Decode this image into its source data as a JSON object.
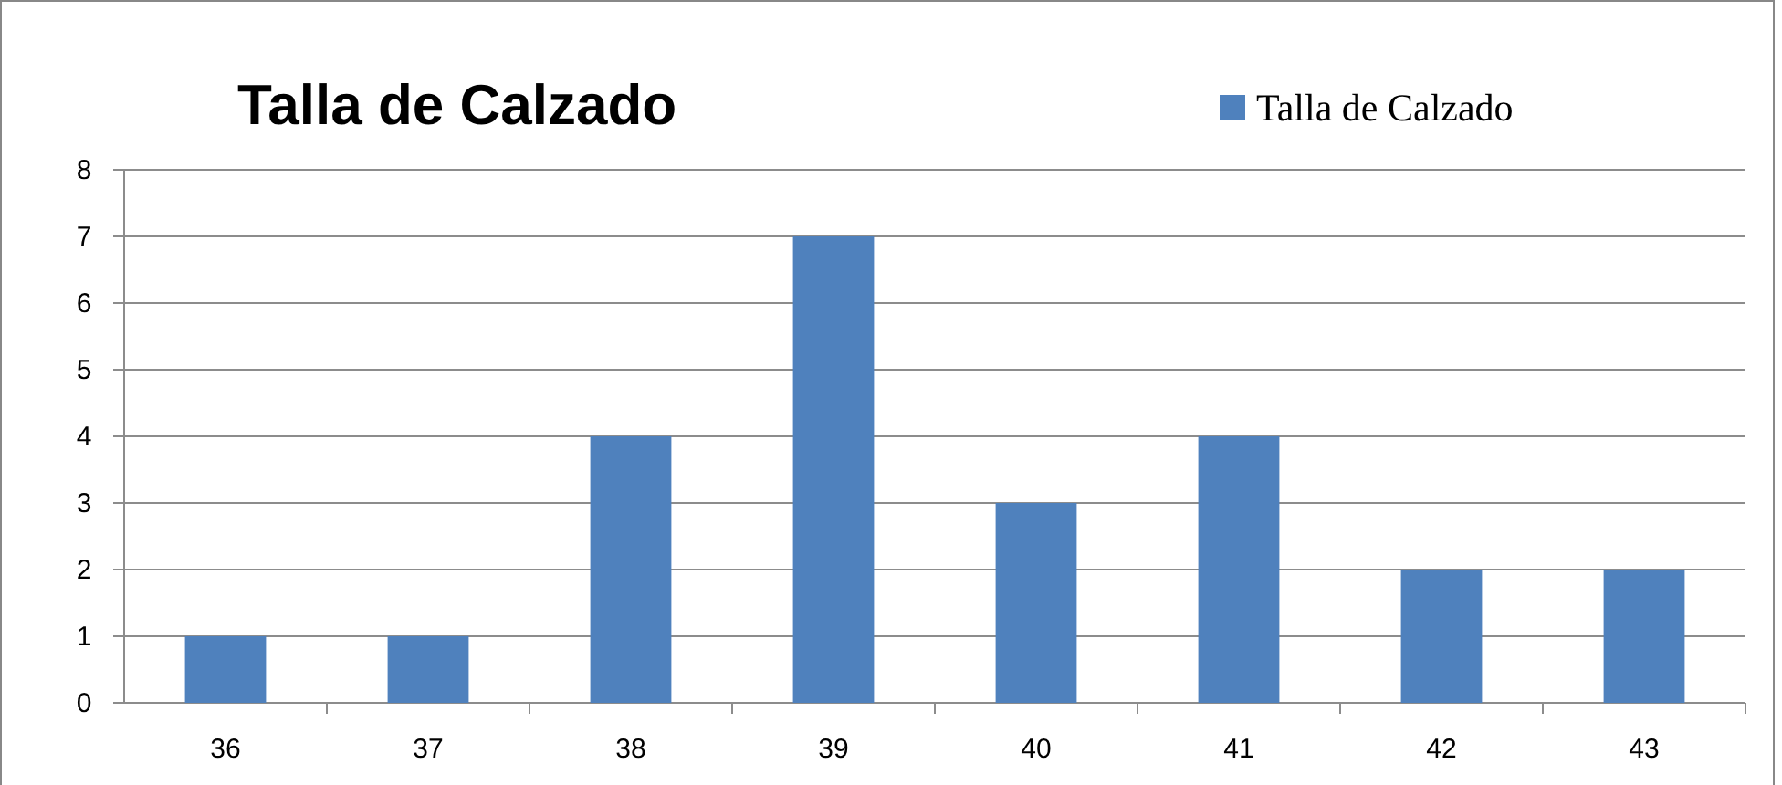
{
  "chart_data": {
    "type": "bar",
    "title": "Talla de Calzado",
    "categories": [
      "36",
      "37",
      "38",
      "39",
      "40",
      "41",
      "42",
      "43"
    ],
    "series": [
      {
        "name": "Talla de Calzado",
        "color": "#4f81bd",
        "values": [
          1,
          1,
          4,
          7,
          3,
          4,
          2,
          2
        ]
      }
    ],
    "ylim": [
      0,
      8
    ],
    "yticks": [
      0,
      1,
      2,
      3,
      4,
      5,
      6,
      7,
      8
    ],
    "grid": "y",
    "legend": "top right"
  }
}
